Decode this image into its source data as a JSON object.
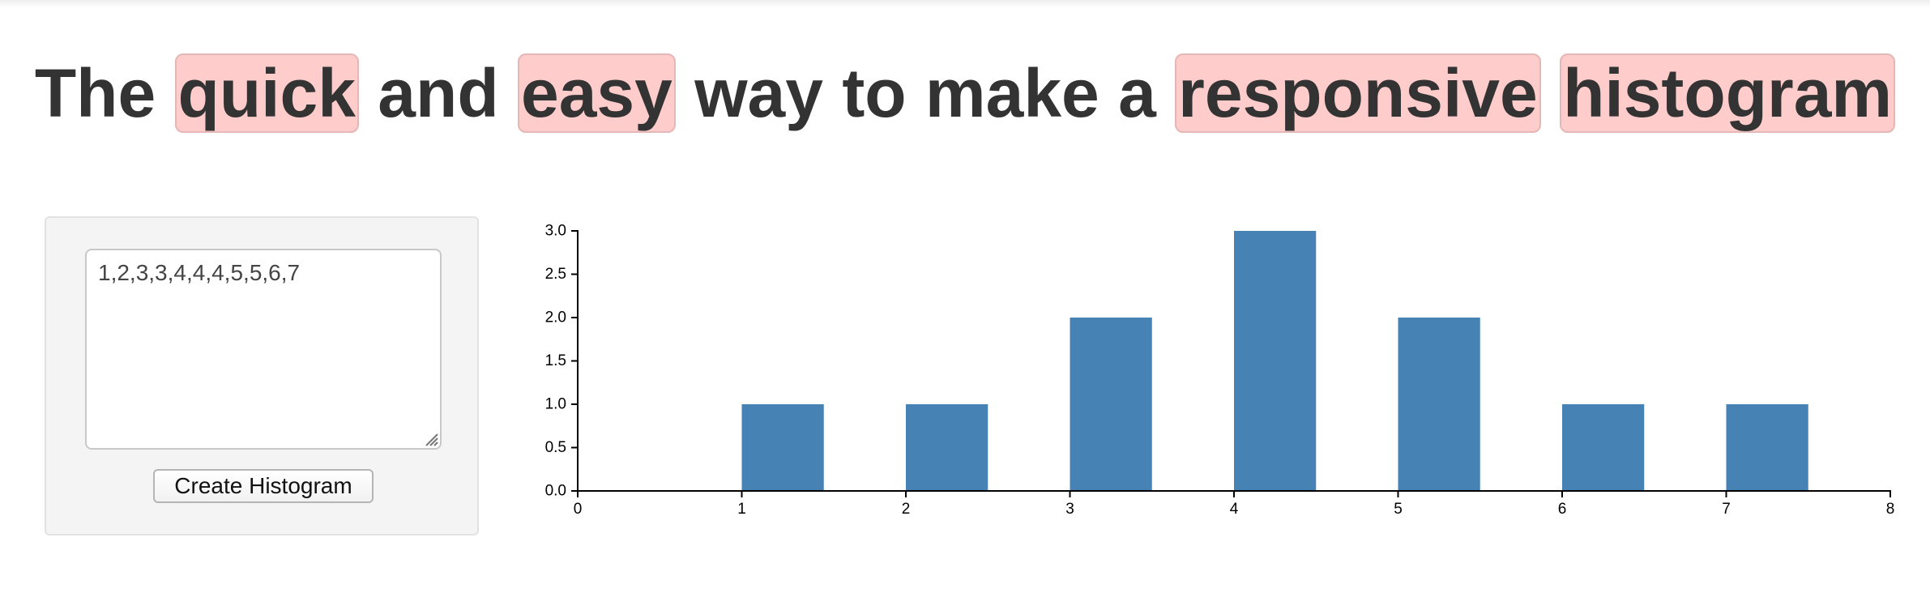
{
  "headline": {
    "parts": [
      "The",
      "quick",
      "and",
      "easy",
      "way to make a",
      "responsive",
      "histogram"
    ]
  },
  "input": {
    "value": "1,2,3,3,4,4,4,5,5,6,7",
    "placeholder": ""
  },
  "button": {
    "label": "Create Histogram"
  },
  "colors": {
    "bar": "#4682b4",
    "highlight": "#ffcccc",
    "text": "#333333"
  },
  "chart_data": {
    "type": "bar",
    "title": "",
    "xlabel": "",
    "ylabel": "",
    "xlim": [
      0,
      8
    ],
    "ylim": [
      0,
      3
    ],
    "x_ticks": [
      "0",
      "1",
      "2",
      "3",
      "4",
      "5",
      "6",
      "7",
      "8"
    ],
    "y_ticks": [
      "0.0",
      "0.5",
      "1.0",
      "1.5",
      "2.0",
      "2.5",
      "3.0"
    ],
    "bins": [
      {
        "x0": 1,
        "x1": 1.5,
        "count": 1
      },
      {
        "x0": 2,
        "x1": 2.5,
        "count": 1
      },
      {
        "x0": 3,
        "x1": 3.5,
        "count": 2
      },
      {
        "x0": 4,
        "x1": 4.5,
        "count": 3
      },
      {
        "x0": 5,
        "x1": 5.5,
        "count": 2
      },
      {
        "x0": 6,
        "x1": 6.5,
        "count": 1
      },
      {
        "x0": 7,
        "x1": 7.5,
        "count": 1
      }
    ],
    "grid": false,
    "legend": "none"
  }
}
